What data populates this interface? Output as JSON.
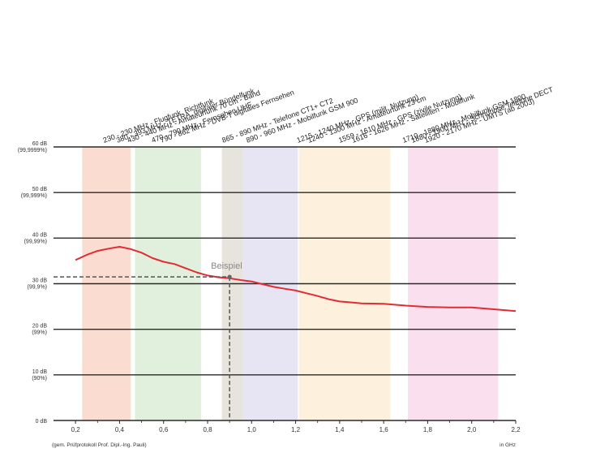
{
  "chart_data": {
    "type": "line",
    "xlabel": "in GHz",
    "xlim": [
      0.1,
      2.2
    ],
    "ylim": [
      0,
      60
    ],
    "x_ticks": [
      "0,2",
      "0,4",
      "0,6",
      "0,8",
      "1,0",
      "1,2",
      "1,4",
      "1,6",
      "1,8",
      "2,0",
      "2,2"
    ],
    "y_ticks": [
      {
        "value": 0,
        "db": "0 dB",
        "pct": ""
      },
      {
        "value": 10,
        "db": "10 dB",
        "pct": "(90%)"
      },
      {
        "value": 20,
        "db": "20 dB",
        "pct": "(99%)"
      },
      {
        "value": 30,
        "db": "30 dB",
        "pct": "(99,9%)"
      },
      {
        "value": 40,
        "db": "40 dB",
        "pct": "(99,99%)"
      },
      {
        "value": 50,
        "db": "50 dB",
        "pct": "(99,999%)"
      },
      {
        "value": 60,
        "db": "60 dB",
        "pct": "(99,9999%)"
      }
    ],
    "grid": true,
    "series": [
      {
        "color": "#e32b33",
        "x": [
          0.2,
          0.25,
          0.3,
          0.35,
          0.4,
          0.45,
          0.5,
          0.55,
          0.6,
          0.65,
          0.7,
          0.75,
          0.8,
          0.85,
          0.9,
          0.95,
          1.0,
          1.05,
          1.1,
          1.15,
          1.2,
          1.25,
          1.3,
          1.35,
          1.4,
          1.45,
          1.5,
          1.6,
          1.7,
          1.8,
          1.9,
          2.0,
          2.1,
          2.2
        ],
        "y": [
          35.2,
          36.3,
          37.2,
          37.7,
          38.1,
          37.6,
          36.8,
          35.6,
          34.8,
          34.3,
          33.4,
          32.5,
          31.8,
          31.4,
          31.2,
          30.8,
          30.5,
          29.9,
          29.3,
          28.9,
          28.5,
          27.9,
          27.3,
          26.6,
          26.1,
          25.9,
          25.7,
          25.6,
          25.2,
          24.9,
          24.8,
          24.8,
          24.4,
          24.0
        ]
      }
    ],
    "bands": [
      {
        "from": 0.23,
        "to": 0.45,
        "color": "#fbdcd0"
      },
      {
        "from": 0.47,
        "to": 0.77,
        "color": "#e1f0dc"
      },
      {
        "from": 0.865,
        "to": 0.96,
        "color": "#e6e4dd"
      },
      {
        "from": 0.96,
        "to": 1.21,
        "color": "#e7e4f4"
      },
      {
        "from": 1.215,
        "to": 1.63,
        "color": "#fdf0dd"
      },
      {
        "from": 1.71,
        "to": 2.12,
        "color": "#fae0ef"
      }
    ],
    "annotation": {
      "label": "Beispiel",
      "x": 0.9,
      "y": 31.5
    },
    "frequency_labels": [
      {
        "text": "230 - 230 MHz - Flugfunk, Richtfunk",
        "at": 0.33
      },
      {
        "text": "380 - 393 MHz - TETRA, digitaler Bündelfunk",
        "at": 0.39
      },
      {
        "text": "430 - 440 MHz - Amateurfunk 70 cm - Band",
        "at": 0.44
      },
      {
        "text": "470 - 790 MHz - Fernsehen UHF",
        "at": 0.55
      },
      {
        "text": "790 - 862 MHz - DVB-T digitales Fernsehen",
        "at": 0.59
      },
      {
        "text": "865 - 890 MHz - Telefone CT1+ CT2",
        "at": 0.87
      },
      {
        "text": "890 - 960 MHz - Mobilfunk GSM 900",
        "at": 0.98
      },
      {
        "text": "1215 - 1240 MHz - GPS (milit. Nutzung)",
        "at": 1.21
      },
      {
        "text": "1240 - 1300 MHz - Amateurfunk 23 cm",
        "at": 1.26
      },
      {
        "text": "1559 - 1610 MHz - GPS (zivile Nutzung)",
        "at": 1.4
      },
      {
        "text": "1616 - 1626 MHz - Satelliten - Mobilfunk",
        "at": 1.46
      },
      {
        "text": "1710 - 1880 MHz - Mobilfunk GSM 1800",
        "at": 1.69
      },
      {
        "text": "1880 - 1900 MHz - Schnurlose Telefone DECT",
        "at": 1.73
      },
      {
        "text": "1920 - 2170 MHz - UMTS (ab 2003)",
        "at": 1.79
      }
    ],
    "footnote": "(gem. Prüfprotokoll Prof. Dipl.-Ing. Pauli)"
  }
}
